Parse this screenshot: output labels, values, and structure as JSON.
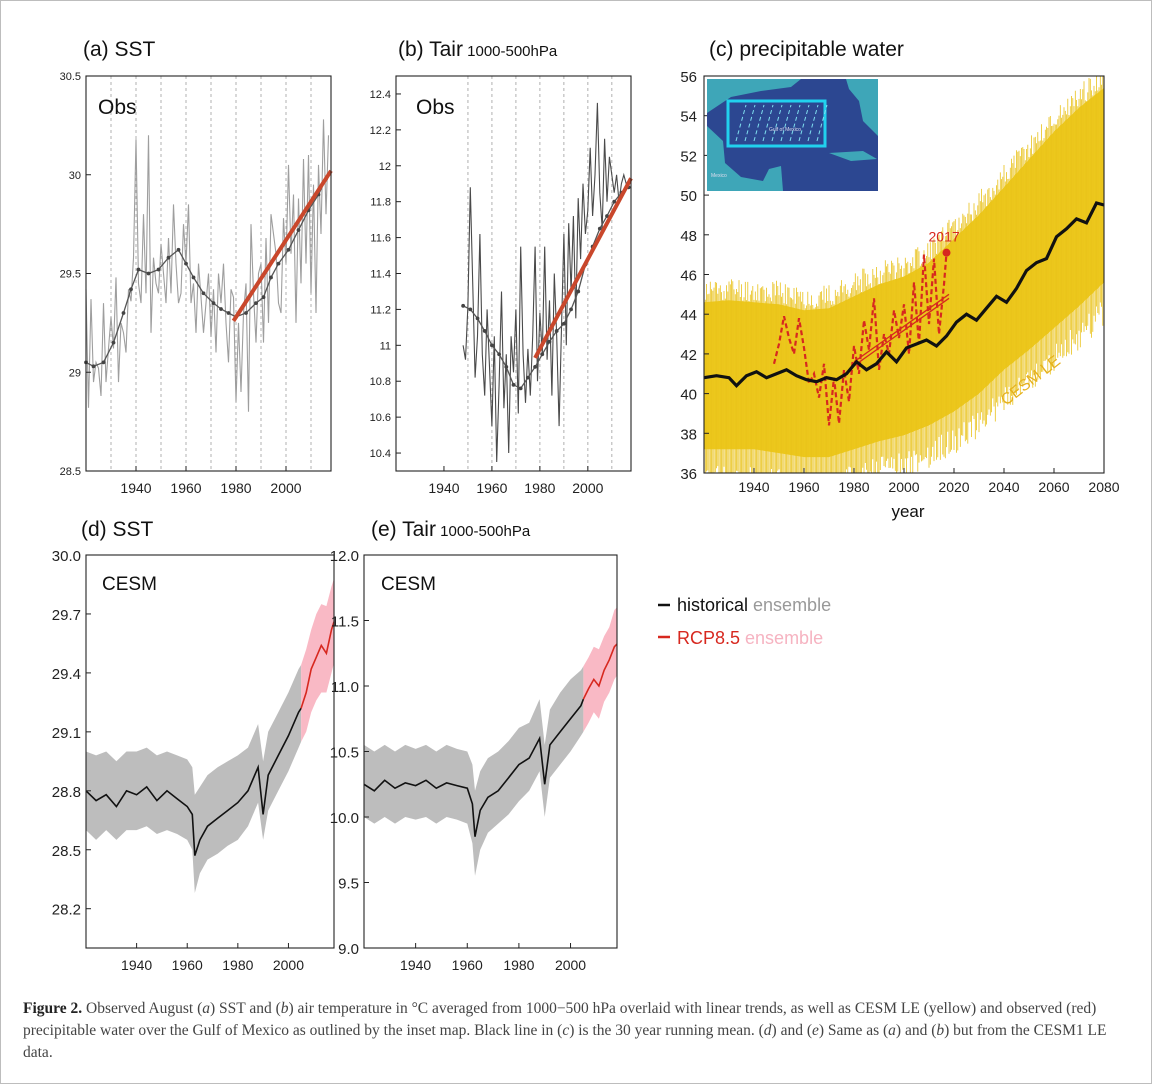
{
  "colors": {
    "red": "#d7281f",
    "trend": "#c9472b",
    "yellow": "#f0cd21",
    "gray_band": "#bdbdbd",
    "pink_band": "#f9b9c5",
    "obs_light": "#9e9e9e",
    "obs_dark": "#4a4a4a",
    "map_sea": "#2c4791",
    "map_land": "#3ea6b8",
    "map_box": "#21d1ee",
    "cesm_label": "#e6b11f",
    "legend_gray": "#999999",
    "legend_pink": "#f6b3c1"
  },
  "chart_data": [
    {
      "id": "a",
      "type": "line",
      "title": "(a) SST",
      "label": "Obs",
      "xlim": [
        1920,
        2018
      ],
      "ylim": [
        28.5,
        30.5
      ],
      "xticks": [
        1940,
        1960,
        1980,
        2000
      ],
      "yticks": [
        "28.5",
        "29",
        "29.5",
        "30",
        "30.5"
      ],
      "grid_x": [
        1920,
        1930,
        1940,
        1950,
        1960,
        1970,
        1980,
        1990,
        2000,
        2010
      ],
      "obs_x_start": 1920,
      "obs_values": [
        29.42,
        28.82,
        29.37,
        28.95,
        29.05,
        29.02,
        28.88,
        29.35,
        28.95,
        29.12,
        29.28,
        29.12,
        29.48,
        28.95,
        29.25,
        29.2,
        29.1,
        29.42,
        29.36,
        29.58,
        30.18,
        29.45,
        29.35,
        29.8,
        29.4,
        30.2,
        29.2,
        29.58,
        29.45,
        29.4,
        29.65,
        29.5,
        29.35,
        29.68,
        29.4,
        29.85,
        29.55,
        29.35,
        29.4,
        29.75,
        29.55,
        29.85,
        29.35,
        29.45,
        29.2,
        29.55,
        29.38,
        29.2,
        29.35,
        29.5,
        29.18,
        29.42,
        29.1,
        29.5,
        29.35,
        29.55,
        29.25,
        29.05,
        29.42,
        29.38,
        28.85,
        29.25,
        28.9,
        29.3,
        29.45,
        28.8,
        29.75,
        29.4,
        29.15,
        29.5,
        29.55,
        29.15,
        29.68,
        29.25,
        29.8,
        29.7,
        29.6,
        29.35,
        29.3,
        29.78,
        29.55,
        30.05,
        29.6,
        29.9,
        29.25,
        29.88,
        29.45,
        30.08,
        29.55,
        30.1,
        29.4,
        29.95,
        29.3,
        30.05,
        29.7,
        30.28,
        29.8,
        30.2
      ],
      "smooth_x": [
        1920,
        1923,
        1927,
        1931,
        1935,
        1938,
        1941,
        1945,
        1949,
        1953,
        1957,
        1960,
        1963,
        1967,
        1971,
        1974,
        1977,
        1980,
        1984,
        1988,
        1991,
        1994,
        1997,
        2001,
        2005,
        2009,
        2013,
        2016
      ],
      "smooth_y": [
        29.05,
        29.03,
        29.05,
        29.15,
        29.3,
        29.42,
        29.52,
        29.5,
        29.52,
        29.58,
        29.62,
        29.55,
        29.48,
        29.4,
        29.35,
        29.32,
        29.3,
        29.28,
        29.3,
        29.35,
        29.38,
        29.48,
        29.55,
        29.62,
        29.72,
        29.82,
        29.9,
        29.98
      ],
      "trend_x": [
        1979,
        2018
      ],
      "trend_y": [
        29.26,
        30.02
      ]
    },
    {
      "id": "b",
      "type": "line",
      "title": "(b) Tair",
      "title_sub": "1000-500hPa",
      "label": "Obs",
      "xlim": [
        1920,
        2018
      ],
      "ylim": [
        10.3,
        12.5
      ],
      "xticks": [
        1940,
        1960,
        1980,
        2000
      ],
      "yticks": [
        "10.4",
        "10.6",
        "10.8",
        "11",
        "11.2",
        "11.4",
        "11.6",
        "11.8",
        "12",
        "12.2",
        "12.4"
      ],
      "grid_x": [
        1950,
        1960,
        1970,
        1980,
        1990,
        2000,
        2010
      ],
      "obs_x_start": 1948,
      "obs_values": [
        11.0,
        10.92,
        11.22,
        11.88,
        11.35,
        10.82,
        11.05,
        11.62,
        10.95,
        10.72,
        11.2,
        10.88,
        10.55,
        11.05,
        10.35,
        10.78,
        11.3,
        10.65,
        10.95,
        10.4,
        11.05,
        10.85,
        11.2,
        10.62,
        11.55,
        10.95,
        10.68,
        10.98,
        10.72,
        11.05,
        11.55,
        10.8,
        11.18,
        10.95,
        11.55,
        10.92,
        11.25,
        10.72,
        11.4,
        11.05,
        10.55,
        11.1,
        11.62,
        11.0,
        11.68,
        11.3,
        11.72,
        11.15,
        11.82,
        11.48,
        11.9,
        11.62,
        11.75,
        12.1,
        11.72,
        11.95,
        12.35,
        11.85,
        11.65,
        12.15,
        11.8,
        12.05,
        11.95,
        11.85,
        11.95,
        11.8,
        11.9,
        11.95,
        11.9,
        11.9,
        11.92
      ],
      "smooth_x": [
        1948,
        1951,
        1954,
        1957,
        1960,
        1963,
        1966,
        1969,
        1972,
        1975,
        1978,
        1981,
        1984,
        1987,
        1990,
        1993,
        1996,
        1999,
        2002,
        2005,
        2008,
        2011,
        2014,
        2017
      ],
      "smooth_y": [
        11.22,
        11.2,
        11.15,
        11.08,
        11.0,
        10.95,
        10.88,
        10.78,
        10.76,
        10.82,
        10.88,
        10.95,
        11.02,
        11.08,
        11.12,
        11.2,
        11.3,
        11.45,
        11.55,
        11.65,
        11.72,
        11.8,
        11.85,
        11.88
      ],
      "trend_x": [
        1978,
        2018
      ],
      "trend_y": [
        10.93,
        11.93
      ]
    },
    {
      "id": "c",
      "type": "line",
      "title": "(c) precipitable water",
      "xlabel": "year",
      "xlim": [
        1920,
        2080
      ],
      "ylim": [
        36,
        56
      ],
      "xticks": [
        1940,
        1960,
        1980,
        2000,
        2020,
        2040,
        2060,
        2080
      ],
      "yticks": [
        "36",
        "38",
        "40",
        "42",
        "44",
        "46",
        "48",
        "50",
        "52",
        "54",
        "56"
      ],
      "ensemble_label": "CESM LE",
      "ensemble_x": [
        1920,
        1930,
        1940,
        1950,
        1960,
        1970,
        1980,
        1990,
        2000,
        2010,
        2020,
        2030,
        2040,
        2050,
        2060,
        2070,
        2080
      ],
      "ensemble_lower": [
        37.2,
        37.2,
        37.2,
        37.0,
        36.8,
        36.8,
        37.2,
        37.6,
        37.9,
        38.4,
        39.1,
        40.0,
        41.2,
        42.2,
        43.3,
        44.4,
        45.6
      ],
      "ensemble_upper": [
        44.6,
        44.7,
        44.6,
        44.5,
        44.2,
        44.3,
        44.9,
        45.5,
        45.9,
        46.6,
        47.8,
        49.0,
        50.4,
        51.8,
        53.2,
        54.4,
        55.4
      ],
      "mean_x": [
        1920,
        1925,
        1930,
        1933,
        1937,
        1941,
        1945,
        1949,
        1953,
        1957,
        1961,
        1965,
        1969,
        1973,
        1977,
        1981,
        1985,
        1989,
        1993,
        1997,
        2001,
        2005,
        2009,
        2013,
        2017,
        2021,
        2025,
        2029,
        2033,
        2037,
        2041,
        2045,
        2049,
        2053,
        2057,
        2061,
        2065,
        2069,
        2073,
        2077,
        2080
      ],
      "mean_y": [
        40.8,
        40.9,
        40.8,
        40.4,
        40.9,
        41.1,
        40.8,
        41.0,
        41.2,
        40.9,
        40.7,
        40.6,
        40.8,
        40.7,
        41.0,
        41.6,
        41.2,
        41.5,
        42.1,
        41.6,
        42.3,
        42.5,
        42.7,
        42.4,
        42.9,
        43.6,
        44.0,
        43.7,
        44.3,
        44.9,
        44.6,
        45.3,
        46.2,
        46.6,
        46.8,
        47.9,
        48.3,
        48.8,
        48.6,
        49.6,
        49.5
      ],
      "obs_x": [
        1948,
        1950,
        1952,
        1954,
        1956,
        1958,
        1960,
        1962,
        1964,
        1966,
        1968,
        1970,
        1972,
        1974,
        1976,
        1978,
        1980,
        1982,
        1984,
        1986,
        1988,
        1990,
        1992,
        1994,
        1996,
        1998,
        2000,
        2002,
        2004,
        2006,
        2008,
        2010,
        2012,
        2014,
        2016,
        2017
      ],
      "obs_y": [
        41.5,
        42.5,
        43.9,
        42.8,
        42.0,
        43.8,
        42.3,
        40.5,
        41.0,
        39.8,
        41.5,
        38.4,
        40.8,
        38.5,
        41.2,
        39.6,
        42.4,
        41.0,
        43.7,
        42.2,
        44.8,
        41.2,
        43.0,
        42.0,
        44.2,
        42.8,
        44.5,
        42.0,
        45.6,
        42.5,
        47.0,
        43.5,
        46.8,
        43.0,
        45.5,
        47.1
      ],
      "trend_x": [
        1980,
        2018
      ],
      "trend_y": [
        41.5,
        44.9
      ],
      "marker_label": "2017",
      "marker": {
        "x": 2017,
        "y": 47.1
      },
      "inset_map": {
        "label_gulf": "Gulf of Mexico",
        "label_land": "Mexico"
      }
    },
    {
      "id": "d",
      "type": "area",
      "title": "(d) SST",
      "label": "CESM",
      "xlim": [
        1920,
        2018
      ],
      "ylim": [
        28.0,
        30.0
      ],
      "xticks": [
        1940,
        1960,
        1980,
        2000
      ],
      "yticks": [
        "28.2",
        "28.5",
        "28.8",
        "29.1",
        "29.4",
        "29.7",
        "30.0"
      ],
      "ytick_values": [
        28.2,
        28.5,
        28.8,
        29.1,
        29.4,
        29.7,
        30.0
      ],
      "hist_x": [
        1920,
        1924,
        1928,
        1932,
        1936,
        1940,
        1944,
        1948,
        1952,
        1956,
        1960,
        1962,
        1963,
        1965,
        1968,
        1972,
        1976,
        1980,
        1984,
        1988,
        1990,
        1992,
        1996,
        2000,
        2004,
        2005
      ],
      "hist_y": [
        28.8,
        28.75,
        28.78,
        28.72,
        28.8,
        28.78,
        28.82,
        28.75,
        28.8,
        28.76,
        28.72,
        28.68,
        28.47,
        28.55,
        28.62,
        28.66,
        28.7,
        28.74,
        28.8,
        28.92,
        28.68,
        28.88,
        28.98,
        29.08,
        29.2,
        29.22
      ],
      "hist_lo": [
        28.6,
        28.55,
        28.6,
        28.55,
        28.6,
        28.6,
        28.62,
        28.58,
        28.6,
        28.58,
        28.55,
        28.5,
        28.28,
        28.38,
        28.45,
        28.48,
        28.52,
        28.55,
        28.62,
        28.74,
        28.55,
        28.7,
        28.8,
        28.9,
        29.02,
        29.05
      ],
      "hist_hi": [
        29.0,
        28.98,
        29.0,
        28.95,
        29.0,
        29.0,
        29.02,
        28.98,
        29.0,
        28.98,
        28.96,
        28.92,
        28.78,
        28.82,
        28.88,
        28.92,
        28.95,
        28.98,
        29.02,
        29.14,
        28.95,
        29.1,
        29.2,
        29.3,
        29.42,
        29.44
      ],
      "rcp_x": [
        2005,
        2007,
        2009,
        2011,
        2013,
        2015,
        2017,
        2018
      ],
      "rcp_y": [
        29.22,
        29.3,
        29.42,
        29.48,
        29.54,
        29.5,
        29.62,
        29.66
      ],
      "rcp_lo": [
        29.05,
        29.1,
        29.2,
        29.26,
        29.3,
        29.3,
        29.4,
        29.45
      ],
      "rcp_hi": [
        29.44,
        29.52,
        29.62,
        29.7,
        29.75,
        29.74,
        29.84,
        29.88
      ]
    },
    {
      "id": "e",
      "type": "area",
      "title": "(e) Tair",
      "title_sub": "1000-500hPa",
      "label": "CESM",
      "xlim": [
        1920,
        2018
      ],
      "ylim": [
        9.0,
        12.0
      ],
      "xticks": [
        1940,
        1960,
        1980,
        2000
      ],
      "yticks": [
        "9.0",
        "9.5",
        "10.0",
        "10.5",
        "11.0",
        "11.5",
        "12.0"
      ],
      "ytick_values": [
        9.0,
        9.5,
        10.0,
        10.5,
        11.0,
        11.5,
        12.0
      ],
      "hist_x": [
        1920,
        1924,
        1928,
        1932,
        1936,
        1940,
        1944,
        1948,
        1952,
        1956,
        1960,
        1962,
        1963,
        1965,
        1968,
        1972,
        1976,
        1980,
        1984,
        1988,
        1990,
        1992,
        1996,
        2000,
        2004,
        2005
      ],
      "hist_y": [
        10.25,
        10.2,
        10.28,
        10.22,
        10.26,
        10.24,
        10.28,
        10.22,
        10.26,
        10.24,
        10.22,
        10.1,
        9.85,
        10.05,
        10.15,
        10.2,
        10.3,
        10.4,
        10.45,
        10.6,
        10.25,
        10.55,
        10.65,
        10.75,
        10.85,
        10.9
      ],
      "hist_lo": [
        10.0,
        9.95,
        10.0,
        9.95,
        10.0,
        9.98,
        10.0,
        9.95,
        10.0,
        9.98,
        9.95,
        9.8,
        9.55,
        9.75,
        9.88,
        9.95,
        10.02,
        10.12,
        10.2,
        10.35,
        10.0,
        10.3,
        10.4,
        10.5,
        10.62,
        10.65
      ],
      "hist_hi": [
        10.55,
        10.5,
        10.55,
        10.5,
        10.55,
        10.52,
        10.55,
        10.5,
        10.55,
        10.52,
        10.5,
        10.4,
        10.2,
        10.35,
        10.45,
        10.5,
        10.58,
        10.68,
        10.72,
        10.9,
        10.55,
        10.82,
        10.95,
        11.05,
        11.12,
        11.15
      ],
      "rcp_x": [
        2005,
        2007,
        2009,
        2011,
        2013,
        2015,
        2017,
        2018
      ],
      "rcp_y": [
        10.9,
        10.98,
        11.05,
        11.0,
        11.12,
        11.2,
        11.3,
        11.32
      ],
      "rcp_lo": [
        10.65,
        10.72,
        10.8,
        10.75,
        10.88,
        10.95,
        11.05,
        11.08
      ],
      "rcp_hi": [
        11.15,
        11.22,
        11.3,
        11.28,
        11.38,
        11.45,
        11.58,
        11.6
      ]
    }
  ],
  "legend": {
    "historical": "historical",
    "rcp": "RCP8.5",
    "ensemble": "ensemble"
  },
  "caption": {
    "label": "Figure 2.",
    "text": " Observed August (a) SST and (b) air temperature in °C averaged from 1000−500 hPa overlaid with linear trends, as well as CESM LE (yellow) and observed (red) precipitable water over the Gulf of Mexico as outlined by the inset map. Black line in (c) is the 30 year running mean. (d) and (e) Same as (a) and (b) but from the CESM1 LE data."
  }
}
